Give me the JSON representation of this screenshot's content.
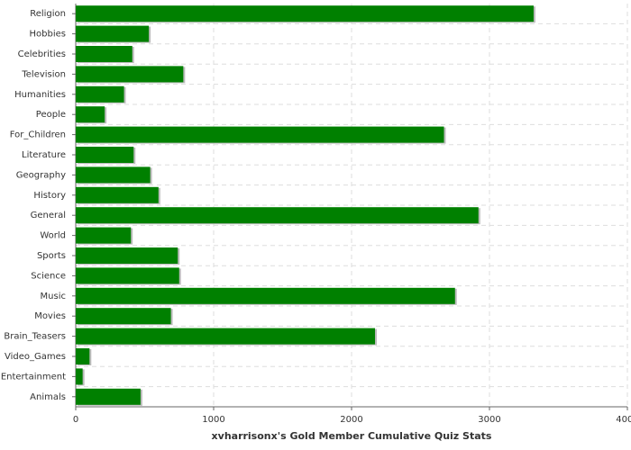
{
  "chart_data": {
    "type": "bar",
    "orientation": "horizontal",
    "x_label": "xvharrisonx's Gold Member Cumulative Quiz Stats",
    "categories": [
      "Religion",
      "Hobbies",
      "Celebrities",
      "Television",
      "Humanities",
      "People",
      "For_Children",
      "Literature",
      "Geography",
      "History",
      "General",
      "World",
      "Sports",
      "Science",
      "Music",
      "Movies",
      "Brain_Teasers",
      "Video_Games",
      "Entertainment",
      "Animals"
    ],
    "values": [
      3320,
      530,
      410,
      780,
      350,
      210,
      2670,
      420,
      540,
      600,
      2920,
      400,
      740,
      750,
      2750,
      690,
      2170,
      100,
      50,
      470
    ],
    "color": "#008000",
    "xlim": [
      0,
      4000
    ],
    "xticks": [
      0,
      1000,
      2000,
      3000,
      4000
    ],
    "grid": true
  }
}
